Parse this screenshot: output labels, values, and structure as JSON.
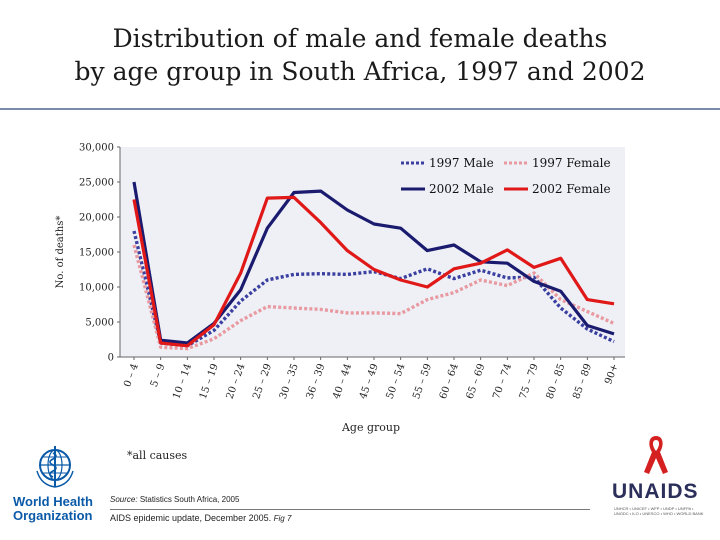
{
  "header": {
    "title_line1": "Distribution of male and female deaths",
    "title_line2": "by age group in South Africa, 1997 and 2002"
  },
  "chart_data": {
    "type": "line",
    "title": "Distribution of male and female deaths by age group in South Africa, 1997 and 2002",
    "xlabel": "Age group",
    "ylabel": "No. of deaths*",
    "ylim": [
      0,
      30000
    ],
    "yticks": [
      0,
      5000,
      10000,
      15000,
      20000,
      25000,
      30000
    ],
    "ytick_labels": [
      "0",
      "5,000",
      "10,000",
      "15,000",
      "20,000",
      "25,000",
      "30,000"
    ],
    "categories": [
      "0 – 4",
      "5 – 9",
      "10 – 14",
      "15 – 19",
      "20 – 24",
      "25 – 29",
      "30 – 35",
      "36 – 39",
      "40 – 44",
      "45 – 49",
      "50 – 54",
      "55 – 59",
      "60 – 64",
      "65 – 69",
      "70 – 74",
      "75 – 79",
      "80 – 85",
      "85 – 89",
      "90+"
    ],
    "legend_position": "top-right",
    "series": [
      {
        "name": "1997 Male",
        "color": "#3a3fa0",
        "style": "dotted",
        "values": [
          18000,
          2000,
          1600,
          3800,
          8000,
          11000,
          11800,
          11900,
          11800,
          12200,
          11200,
          12600,
          11200,
          12400,
          11300,
          11400,
          7000,
          4000,
          2200
        ]
      },
      {
        "name": "1997 Female",
        "color": "#e89aa0",
        "style": "dotted",
        "values": [
          16000,
          1400,
          1200,
          2600,
          5200,
          7200,
          7000,
          6800,
          6300,
          6300,
          6200,
          8200,
          9200,
          11000,
          10200,
          12000,
          8200,
          6500,
          4800
        ]
      },
      {
        "name": "2002 Male",
        "color": "#1a1a6e",
        "style": "solid",
        "values": [
          25000,
          2400,
          2000,
          4800,
          9600,
          18400,
          23500,
          23700,
          21000,
          19000,
          18400,
          15200,
          16000,
          13600,
          13400,
          10800,
          9400,
          4500,
          3300
        ]
      },
      {
        "name": "2002 Female",
        "color": "#e01818",
        "style": "solid",
        "values": [
          22500,
          2000,
          1600,
          4600,
          12000,
          22700,
          22800,
          19200,
          15200,
          12500,
          11000,
          10000,
          12600,
          13400,
          15300,
          12800,
          14100,
          8200,
          7600
        ]
      }
    ]
  },
  "footnote": "*all causes",
  "source": {
    "label": "Source:",
    "text": "Statistics South Africa, 2005"
  },
  "epi": {
    "text": "AIDS epidemic update, December 2005.",
    "fig": "Fig 7"
  },
  "logos": {
    "who_name_line1": "World Health",
    "who_name_line2": "Organization",
    "unaids_name": "UNAIDS",
    "unaids_sub": "UNHCR • UNICEF • WFP • UNDP • UNFPA • UNODC • ILO • UNESCO • WHO • WORLD BANK"
  },
  "colors": {
    "who_blue": "#0a5aa8",
    "unaids_navy": "#2b2f5a",
    "ribbon_red": "#d42020"
  }
}
